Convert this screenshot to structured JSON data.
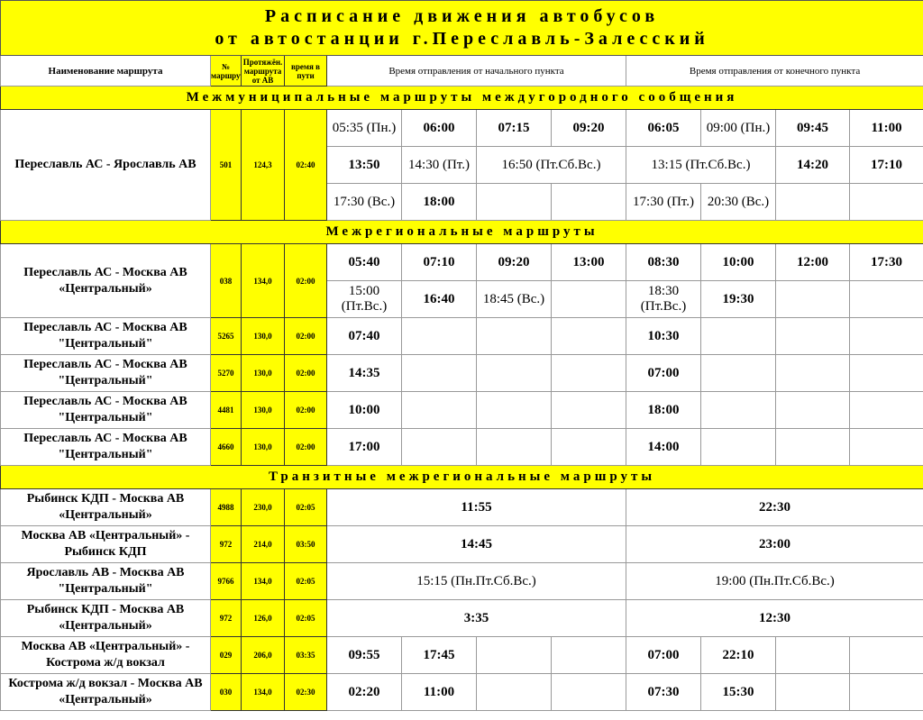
{
  "title": {
    "line1": "Расписание движения автобусов",
    "line2": "от автостанции г.Переславль-Залесский"
  },
  "headers": {
    "route_name": "Наименование маршрута",
    "route_number": "№ маршрута",
    "distance": "Протяжён. маршрута от АВ",
    "duration": "время в пути",
    "departure_start": "Время отправления от начального пункта",
    "departure_end": "Время отправления от  конечного пункта"
  },
  "colors": {
    "highlight": "#ffff00"
  },
  "sections": [
    {
      "title": "Межмуниципальные маршруты междугородного сообщения",
      "routes": [
        {
          "name": "Переславль АС - Ярославль АВ",
          "number": "501",
          "distance": "124,3",
          "duration": "02:40",
          "rows": [
            [
              {
                "t": "05:35 (Пн.)"
              },
              {
                "t": "06:00",
                "b": 1
              },
              {
                "t": "07:15",
                "b": 1
              },
              {
                "t": "09:20",
                "b": 1
              },
              {
                "t": "06:05",
                "b": 1
              },
              {
                "t": "09:00 (Пн.)"
              },
              {
                "t": "09:45",
                "b": 1
              },
              {
                "t": "11:00",
                "b": 1
              }
            ],
            [
              {
                "t": "13:50",
                "b": 1
              },
              {
                "t": "14:30 (Пт.)"
              },
              {
                "t": "16:50 (Пт.Сб.Вс.)",
                "s": 2
              },
              {
                "t": "13:15 (Пт.Сб.Вс.)",
                "s": 2
              },
              {
                "t": "14:20",
                "b": 1
              },
              {
                "t": "17:10",
                "b": 1
              }
            ],
            [
              {
                "t": "17:30 (Вс.)"
              },
              {
                "t": "18:00",
                "b": 1
              },
              {
                "t": ""
              },
              {
                "t": ""
              },
              {
                "t": "17:30 (Пт.)"
              },
              {
                "t": "20:30 (Вс.)"
              },
              {
                "t": ""
              },
              {
                "t": ""
              }
            ]
          ]
        }
      ]
    },
    {
      "title": "Межрегиональные маршруты",
      "routes": [
        {
          "name": "Переславль АС - Москва  АВ «Центральный»",
          "number": "038",
          "distance": "134,0",
          "duration": "02:00",
          "rows": [
            [
              {
                "t": "05:40",
                "b": 1
              },
              {
                "t": "07:10",
                "b": 1
              },
              {
                "t": "09:20",
                "b": 1
              },
              {
                "t": "13:00",
                "b": 1
              },
              {
                "t": "08:30",
                "b": 1
              },
              {
                "t": "10:00",
                "b": 1
              },
              {
                "t": "12:00",
                "b": 1
              },
              {
                "t": "17:30",
                "b": 1
              }
            ],
            [
              {
                "t": "15:00 (Пт.Вс.)"
              },
              {
                "t": "16:40",
                "b": 1
              },
              {
                "t": "18:45 (Вс.)"
              },
              {
                "t": ""
              },
              {
                "t": "18:30 (Пт.Вс.)"
              },
              {
                "t": "19:30",
                "b": 1
              },
              {
                "t": ""
              },
              {
                "t": ""
              }
            ]
          ]
        },
        {
          "name": "Переславль АС - Москва АВ \"Центральный\"",
          "number": "5265",
          "distance": "130,0",
          "duration": "02:00",
          "rows": [
            [
              {
                "t": "07:40",
                "b": 1
              },
              {
                "t": ""
              },
              {
                "t": ""
              },
              {
                "t": ""
              },
              {
                "t": "10:30",
                "b": 1
              },
              {
                "t": ""
              },
              {
                "t": ""
              },
              {
                "t": ""
              }
            ]
          ]
        },
        {
          "name": "Переславль АС - Москва АВ \"Центральный\"",
          "number": "5270",
          "distance": "130,0",
          "duration": "02:00",
          "rows": [
            [
              {
                "t": "14:35",
                "b": 1
              },
              {
                "t": ""
              },
              {
                "t": ""
              },
              {
                "t": ""
              },
              {
                "t": "07:00",
                "b": 1
              },
              {
                "t": ""
              },
              {
                "t": ""
              },
              {
                "t": ""
              }
            ]
          ]
        },
        {
          "name": "Переславль АС - Москва АВ \"Центральный\"",
          "number": "4481",
          "distance": "130,0",
          "duration": "02:00",
          "rows": [
            [
              {
                "t": "10:00",
                "b": 1
              },
              {
                "t": ""
              },
              {
                "t": ""
              },
              {
                "t": ""
              },
              {
                "t": "18:00",
                "b": 1
              },
              {
                "t": ""
              },
              {
                "t": ""
              },
              {
                "t": ""
              }
            ]
          ]
        },
        {
          "name": "Переславль АС - Москва АВ \"Центральный\"",
          "number": "4660",
          "distance": "130,0",
          "duration": "02:00",
          "rows": [
            [
              {
                "t": "17:00",
                "b": 1
              },
              {
                "t": ""
              },
              {
                "t": ""
              },
              {
                "t": ""
              },
              {
                "t": "14:00",
                "b": 1
              },
              {
                "t": ""
              },
              {
                "t": ""
              },
              {
                "t": ""
              }
            ]
          ]
        }
      ]
    },
    {
      "title": "Транзитные межрегиональные маршруты",
      "routes": [
        {
          "name": "Рыбинск КДП - Москва АВ «Центральный»",
          "number": "4988",
          "distance": "230,0",
          "duration": "02:05",
          "rows": [
            [
              {
                "t": "11:55",
                "b": 1,
                "s": 4
              },
              {
                "t": "22:30",
                "b": 1,
                "s": 4
              }
            ]
          ]
        },
        {
          "name": "Москва АВ «Центральный» - Рыбинск КДП",
          "number": "972",
          "distance": "214,0",
          "duration": "03:50",
          "rows": [
            [
              {
                "t": "14:45",
                "b": 1,
                "s": 4
              },
              {
                "t": "23:00",
                "b": 1,
                "s": 4
              }
            ]
          ]
        },
        {
          "name": "Ярославль АВ - Москва АВ \"Центральный\"",
          "number": "9766",
          "distance": "134,0",
          "duration": "02:05",
          "rows": [
            [
              {
                "t": "15:15 (Пн.Пт.Сб.Вс.)",
                "s": 4
              },
              {
                "t": "19:00 (Пн.Пт.Сб.Вс.)",
                "s": 4
              }
            ]
          ]
        },
        {
          "name": "Рыбинск КДП - Москва АВ «Центральный»",
          "number": "972",
          "distance": "126,0",
          "duration": "02:05",
          "rows": [
            [
              {
                "t": "3:35",
                "b": 1,
                "s": 4
              },
              {
                "t": "12:30",
                "b": 1,
                "s": 4
              }
            ]
          ]
        },
        {
          "name": "Москва АВ «Центральный»  - Кострома ж/д вокзал",
          "number": "029",
          "distance": "206,0",
          "duration": "03:35",
          "rows": [
            [
              {
                "t": "09:55",
                "b": 1
              },
              {
                "t": "17:45",
                "b": 1
              },
              {
                "t": ""
              },
              {
                "t": ""
              },
              {
                "t": "07:00",
                "b": 1
              },
              {
                "t": "22:10",
                "b": 1
              },
              {
                "t": ""
              },
              {
                "t": ""
              }
            ]
          ]
        },
        {
          "name": "Кострома ж/д вокзал - Москва АВ «Центральный»",
          "number": "030",
          "distance": "134,0",
          "duration": "02:30",
          "rows": [
            [
              {
                "t": "02:20",
                "b": 1
              },
              {
                "t": "11:00",
                "b": 1
              },
              {
                "t": ""
              },
              {
                "t": ""
              },
              {
                "t": "07:30",
                "b": 1
              },
              {
                "t": "15:30",
                "b": 1
              },
              {
                "t": ""
              },
              {
                "t": ""
              }
            ]
          ]
        }
      ]
    }
  ]
}
